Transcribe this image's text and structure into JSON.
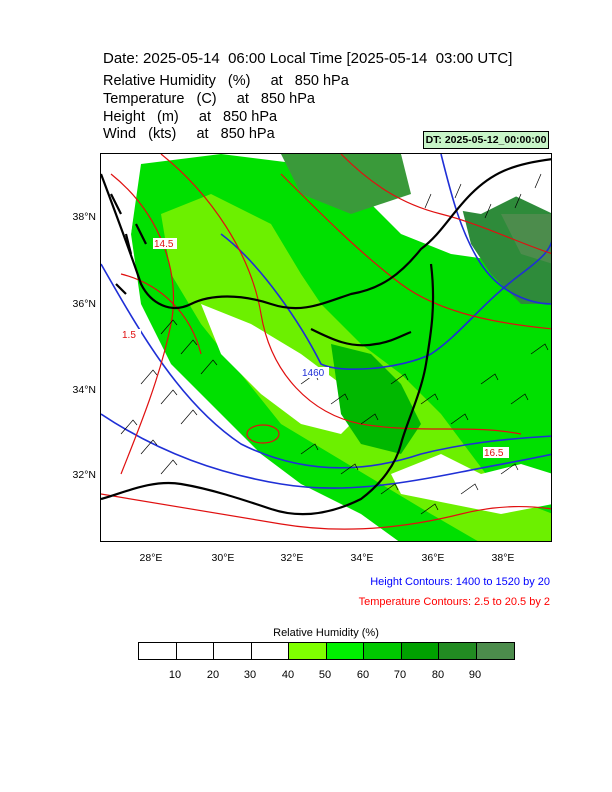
{
  "header": {
    "title": "Date: 2025-05-14  06:00 Local Time [2025-05-14  03:00 UTC]",
    "variables": [
      "Relative Humidity   (%)     at   850 hPa",
      "Temperature   (C)     at   850 hPa",
      "Height   (m)     at   850 hPa",
      "Wind   (kts)     at   850 hPa"
    ],
    "dt_badge": "DT: 2025-05-12_00:00:00"
  },
  "map": {
    "lat_labels": [
      "38°N",
      "36°N",
      "34°N",
      "32°N"
    ],
    "lon_labels": [
      "28°E",
      "30°E",
      "32°E",
      "34°E",
      "36°E",
      "38°E"
    ],
    "contour_labels": [
      "1460",
      "14.5",
      "1.5",
      "16.5"
    ],
    "colors": {
      "height_contour": "#1f2fd6",
      "temperature_contour": "#e01010",
      "coastline": "#000000",
      "wind_barb": "#000000"
    }
  },
  "notes": {
    "height": "Height Contours: 1400 to 1520 by 20",
    "temperature": "Temperature Contours: 2.5 to 20.5 by 2",
    "height_color": "#0000ff",
    "temperature_color": "#ff0000"
  },
  "colorbar": {
    "title": "Relative Humidity  (%)",
    "ticks": [
      "10",
      "20",
      "30",
      "40",
      "50",
      "60",
      "70",
      "80",
      "90"
    ],
    "colors": [
      "#ffffff",
      "#ffffff",
      "#ffffff",
      "#ffffff",
      "#7fff00",
      "#00f000",
      "#00c800",
      "#00a000",
      "#228b22",
      "#4c8c4c"
    ]
  }
}
